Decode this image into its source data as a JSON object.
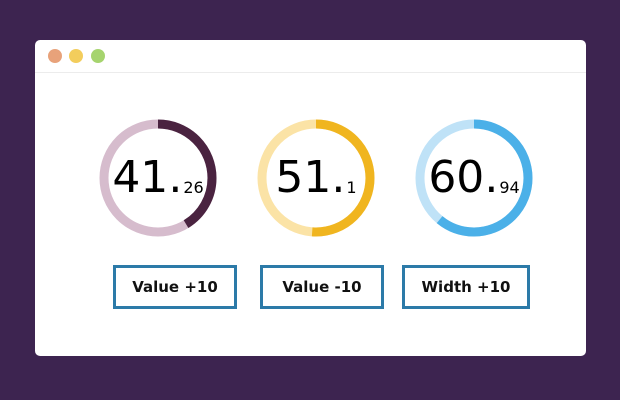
{
  "window": {
    "traffic_lights": [
      "#e8a27a",
      "#f3cd5c",
      "#a6d46e"
    ]
  },
  "gauges": [
    {
      "int": "41",
      "dec": "26",
      "fraction": 0.4126,
      "track": "#d6bccd",
      "fill": "#4a2340"
    },
    {
      "int": "51",
      "dec": "1",
      "fraction": 0.511,
      "track": "#fbe3a6",
      "fill": "#f0b51f"
    },
    {
      "int": "60",
      "dec": "94",
      "fraction": 0.6094,
      "track": "#bfe2f7",
      "fill": "#4bb0e8"
    }
  ],
  "buttons": [
    {
      "label": "Value +10"
    },
    {
      "label": "Value -10"
    },
    {
      "label": "Width +10"
    }
  ]
}
